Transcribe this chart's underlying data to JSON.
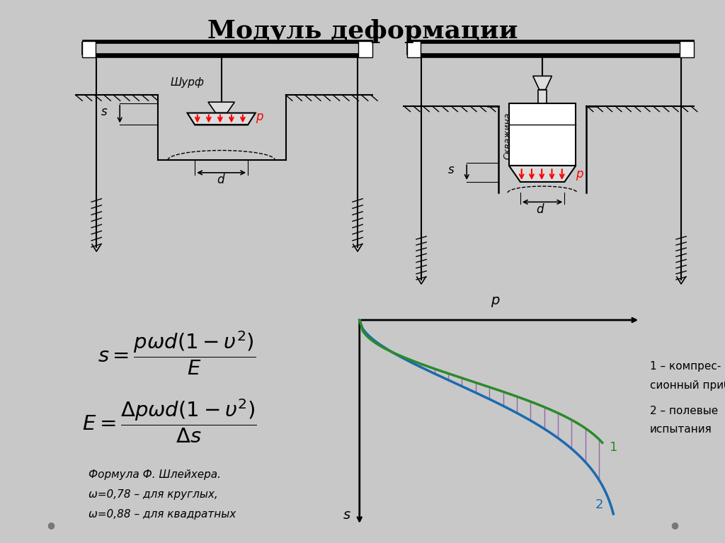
{
  "title": "Модуль деформации",
  "bg_color": "#c8c8c8",
  "diagram_bg": "#f5f5f5",
  "curve1_color": "#2a8a2a",
  "curve2_color": "#1a6ab0",
  "fill_color": "#9966aa",
  "legend1_line1": "1 – компрес-",
  "legend1_line2": "сионный прибор",
  "legend2_line1": "2 – полевые",
  "legend2_line2": "испытания",
  "formula_note": "Формула Ф. Шлейхера.\nω=0,78 – для круглых,\nω=0,88 – для квадратных"
}
